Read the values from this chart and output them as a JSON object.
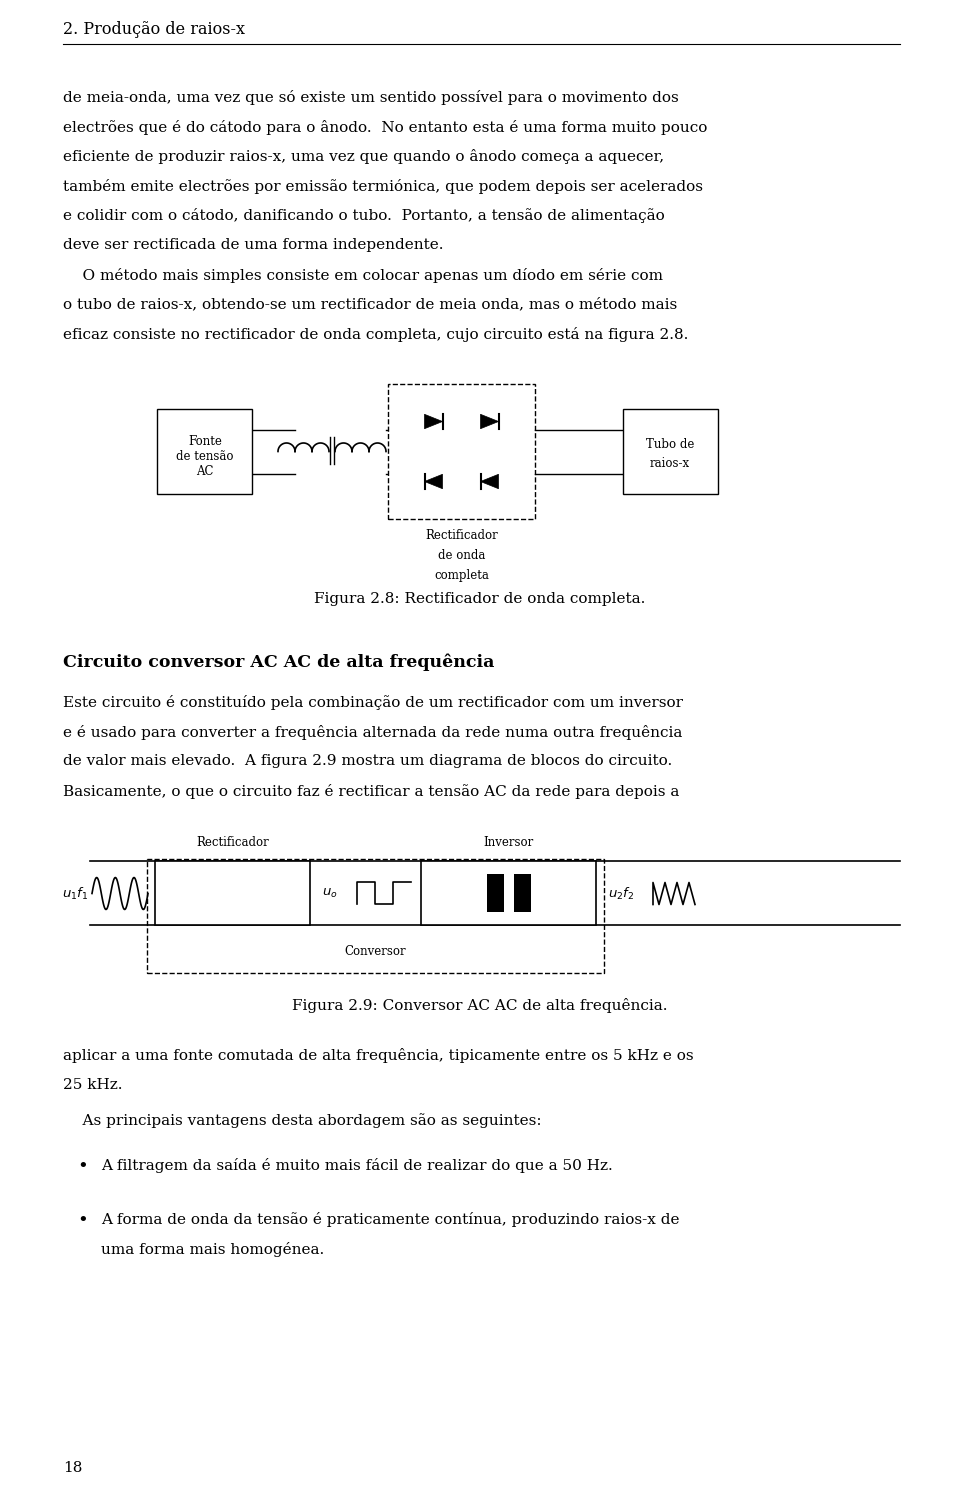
{
  "page_title": "2. Produção de raios-x",
  "body_text_1": "de meia-onda, uma vez que só existe um sentido possível para o movimento dos\nelectrões que é do cátodo para o ânodo.  No entanto esta é uma forma muito pouco\neficiente de produzir raios-x, uma vez que quando o ânodo começa a aquecer,\ntambém emite electrões por emissão termiónica, que podem depois ser acelerados\ne colidir com o cátodo, danificando o tubo.  Portanto, a tensão de alimentação\ndeve ser rectificada de uma forma independente.",
  "body_text_2": "    O método mais simples consiste em colocar apenas um díodo em série com\no tubo de raios-x, obtendo-se um rectificador de meia onda, mas o método mais\neficaz consiste no rectificador de onda completa, cujo circuito está na figura 2.8.",
  "fig28_caption": "Figura 2.8: Rectificador de onda completa.",
  "fig28_label_source": "Fonte\nde tensão\nAC",
  "fig28_label_tube": "Tubo de\nraios-x",
  "fig28_label_rect": "Rectificador\nde onda\ncompleta",
  "section_title": "Circuito conversor AC AC de alta frequência",
  "body_text_3": "Este circuito é constituído pela combinação de um rectificador com um inversor\ne é usado para converter a frequência alternada da rede numa outra frequência\nde valor mais elevado.  A figura 2.9 mostra um diagrama de blocos do circuito.\nBasicamente, o que o circuito faz é rectificar a tensão AC da rede para depois a",
  "fig29_caption": "Figura 2.9: Conversor AC AC de alta frequência.",
  "fig29_label_rect": "Rectificador",
  "fig29_label_inv": "Inversor",
  "fig29_label_conv": "Conversor",
  "body_text_4": "aplicar a uma fonte comutada de alta frequência, tipicamente entre os 5 kHz e os\n25 kHz.",
  "body_text_5": "    As principais vantagens desta abordagem são as seguintes:",
  "bullet1": "A filtragem da saída é muito mais fácil de realizar do que a 50 Hz.",
  "bullet2_line1": "A forma de onda da tensão é praticamente contínua, produzindo raios-x de",
  "bullet2_line2": "uma forma mais homogénea.",
  "page_number": "18",
  "bg_color": "#ffffff",
  "text_color": "#000000"
}
